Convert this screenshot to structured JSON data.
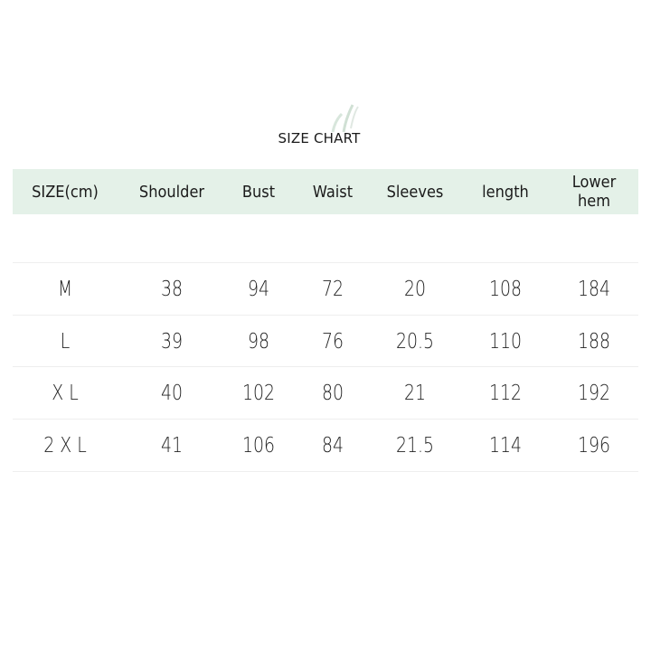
{
  "title": "SIZE CHART",
  "colors": {
    "header_band": "#e4f1e8",
    "divider": "#eeeeee"
  },
  "headers": [
    "SIZE(cm)",
    "Shoulder",
    "Bust",
    "Waist",
    "Sleeves",
    "length",
    "Lower hem"
  ],
  "rows": [
    [
      "M",
      "38",
      "94",
      "72",
      "20",
      "108",
      "184"
    ],
    [
      "L",
      "39",
      "98",
      "76",
      "20.5",
      "110",
      "188"
    ],
    [
      "X L",
      "40",
      "102",
      "80",
      "21",
      "112",
      "192"
    ],
    [
      "2 X L",
      "41",
      "106",
      "84",
      "21.5",
      "114",
      "196"
    ]
  ]
}
